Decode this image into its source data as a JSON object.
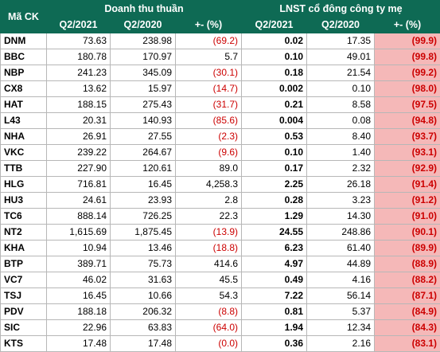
{
  "header": {
    "code_label": "Mã CK",
    "revenue_group": "Doanh thu thuần",
    "profit_group": "LNST cổ đông công ty mẹ",
    "sub": [
      "Q2/2021",
      "Q2/2020",
      "+- (%)",
      "Q2/2021",
      "Q2/2020",
      "+- (%)"
    ]
  },
  "rows": [
    {
      "code": "DNM",
      "rev21": "73.63",
      "rev20": "238.98",
      "rev_chg": "(69.2)",
      "rev_neg": true,
      "p21": "0.02",
      "p20": "17.35",
      "p_chg": "(99.9)"
    },
    {
      "code": "BBC",
      "rev21": "180.78",
      "rev20": "170.97",
      "rev_chg": "5.7",
      "rev_neg": false,
      "p21": "0.10",
      "p20": "49.01",
      "p_chg": "(99.8)"
    },
    {
      "code": "NBP",
      "rev21": "241.23",
      "rev20": "345.09",
      "rev_chg": "(30.1)",
      "rev_neg": true,
      "p21": "0.18",
      "p20": "21.54",
      "p_chg": "(99.2)"
    },
    {
      "code": "CX8",
      "rev21": "13.62",
      "rev20": "15.97",
      "rev_chg": "(14.7)",
      "rev_neg": true,
      "p21": "0.002",
      "p20": "0.10",
      "p_chg": "(98.0)"
    },
    {
      "code": "HAT",
      "rev21": "188.15",
      "rev20": "275.43",
      "rev_chg": "(31.7)",
      "rev_neg": true,
      "p21": "0.21",
      "p20": "8.58",
      "p_chg": "(97.5)"
    },
    {
      "code": "L43",
      "rev21": "20.31",
      "rev20": "140.93",
      "rev_chg": "(85.6)",
      "rev_neg": true,
      "p21": "0.004",
      "p20": "0.08",
      "p_chg": "(94.8)"
    },
    {
      "code": "NHA",
      "rev21": "26.91",
      "rev20": "27.55",
      "rev_chg": "(2.3)",
      "rev_neg": true,
      "p21": "0.53",
      "p20": "8.40",
      "p_chg": "(93.7)"
    },
    {
      "code": "VKC",
      "rev21": "239.22",
      "rev20": "264.67",
      "rev_chg": "(9.6)",
      "rev_neg": true,
      "p21": "0.10",
      "p20": "1.40",
      "p_chg": "(93.1)"
    },
    {
      "code": "TTB",
      "rev21": "227.90",
      "rev20": "120.61",
      "rev_chg": "89.0",
      "rev_neg": false,
      "p21": "0.17",
      "p20": "2.32",
      "p_chg": "(92.9)"
    },
    {
      "code": "HLG",
      "rev21": "716.81",
      "rev20": "16.45",
      "rev_chg": "4,258.3",
      "rev_neg": false,
      "p21": "2.25",
      "p20": "26.18",
      "p_chg": "(91.4)"
    },
    {
      "code": "HU3",
      "rev21": "24.61",
      "rev20": "23.93",
      "rev_chg": "2.8",
      "rev_neg": false,
      "p21": "0.28",
      "p20": "3.23",
      "p_chg": "(91.2)"
    },
    {
      "code": "TC6",
      "rev21": "888.14",
      "rev20": "726.25",
      "rev_chg": "22.3",
      "rev_neg": false,
      "p21": "1.29",
      "p20": "14.30",
      "p_chg": "(91.0)"
    },
    {
      "code": "NT2",
      "rev21": "1,615.69",
      "rev20": "1,875.45",
      "rev_chg": "(13.9)",
      "rev_neg": true,
      "p21": "24.55",
      "p20": "248.86",
      "p_chg": "(90.1)"
    },
    {
      "code": "KHA",
      "rev21": "10.94",
      "rev20": "13.46",
      "rev_chg": "(18.8)",
      "rev_neg": true,
      "p21": "6.23",
      "p20": "61.40",
      "p_chg": "(89.9)"
    },
    {
      "code": "BTP",
      "rev21": "389.71",
      "rev20": "75.73",
      "rev_chg": "414.6",
      "rev_neg": false,
      "p21": "4.97",
      "p20": "44.89",
      "p_chg": "(88.9)"
    },
    {
      "code": "VC7",
      "rev21": "46.02",
      "rev20": "31.63",
      "rev_chg": "45.5",
      "rev_neg": false,
      "p21": "0.49",
      "p20": "4.16",
      "p_chg": "(88.2)"
    },
    {
      "code": "TSJ",
      "rev21": "16.45",
      "rev20": "10.66",
      "rev_chg": "54.3",
      "rev_neg": false,
      "p21": "7.22",
      "p20": "56.14",
      "p_chg": "(87.1)"
    },
    {
      "code": "PDV",
      "rev21": "188.18",
      "rev20": "206.32",
      "rev_chg": "(8.8)",
      "rev_neg": true,
      "p21": "0.81",
      "p20": "5.37",
      "p_chg": "(84.9)"
    },
    {
      "code": "SIC",
      "rev21": "22.96",
      "rev20": "63.83",
      "rev_chg": "(64.0)",
      "rev_neg": true,
      "p21": "1.94",
      "p20": "12.34",
      "p_chg": "(84.3)"
    },
    {
      "code": "KTS",
      "rev21": "17.48",
      "rev20": "17.48",
      "rev_chg": "(0.0)",
      "rev_neg": true,
      "p21": "0.36",
      "p20": "2.16",
      "p_chg": "(83.1)"
    }
  ],
  "colors": {
    "header_bg": "#0e6a54",
    "negative_text": "#cc0000",
    "highlight_bg": "#f5b8b8"
  }
}
